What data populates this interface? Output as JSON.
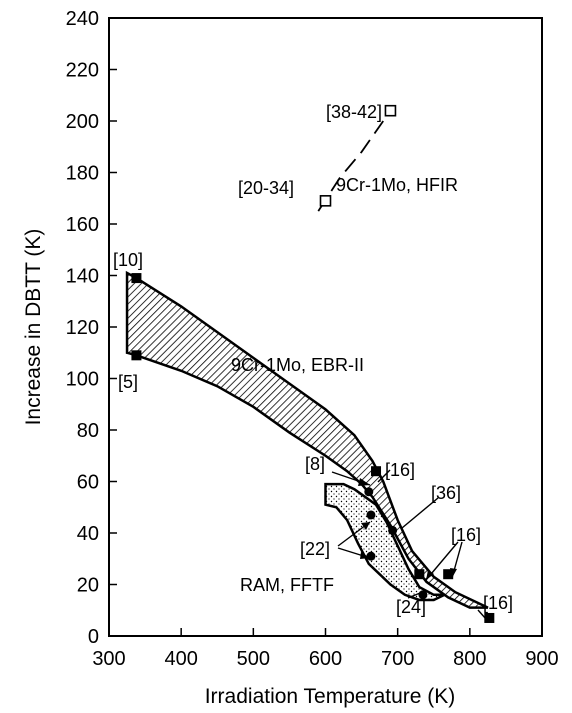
{
  "chart_data": {
    "type": "scatter",
    "xlabel": "Irradiation Temperature (K)",
    "ylabel": "Increase in DBTT (K)",
    "xlim": [
      300,
      900
    ],
    "ylim": [
      0,
      240
    ],
    "x_ticks": [
      300,
      400,
      500,
      600,
      700,
      800,
      900
    ],
    "y_ticks": [
      0,
      20,
      40,
      60,
      80,
      100,
      120,
      140,
      160,
      180,
      200,
      220,
      240
    ],
    "grid": false,
    "legend": "none",
    "series": [
      {
        "name": "9Cr-1Mo, HFIR",
        "marker": "open-square",
        "points": [
          {
            "x": 600,
            "y": 169,
            "label": "[20-34]"
          },
          {
            "x": 690,
            "y": 204,
            "label": "[38-42]"
          }
        ],
        "trend": [
          [
            590,
            165
          ],
          [
            620,
            178
          ],
          [
            650,
            188
          ],
          [
            680,
            200
          ]
        ]
      },
      {
        "name": "9Cr-1Mo, EBR-II",
        "marker": "filled-square",
        "points": [
          {
            "x": 338,
            "y": 139,
            "label": "[10]"
          },
          {
            "x": 338,
            "y": 109,
            "label": "[5]"
          },
          {
            "x": 670,
            "y": 64,
            "label": "[16]"
          },
          {
            "x": 730,
            "y": 24,
            "label": "[16]"
          },
          {
            "x": 770,
            "y": 24,
            "label": "[16]"
          },
          {
            "x": 827,
            "y": 7,
            "label": "[16]"
          }
        ],
        "band_upper": [
          [
            325,
            141
          ],
          [
            338,
            139
          ],
          [
            400,
            128
          ],
          [
            450,
            118
          ],
          [
            500,
            108
          ],
          [
            550,
            98
          ],
          [
            600,
            88
          ],
          [
            640,
            78
          ],
          [
            665,
            68
          ],
          [
            680,
            60
          ],
          [
            700,
            45
          ],
          [
            720,
            33
          ],
          [
            750,
            23
          ],
          [
            780,
            17
          ],
          [
            810,
            13
          ],
          [
            825,
            11
          ]
        ],
        "band_lower": [
          [
            325,
            110
          ],
          [
            338,
            109
          ],
          [
            400,
            103
          ],
          [
            450,
            97
          ],
          [
            500,
            89
          ],
          [
            550,
            79
          ],
          [
            600,
            70
          ],
          [
            630,
            64
          ],
          [
            650,
            59
          ],
          [
            665,
            54
          ],
          [
            690,
            43
          ],
          [
            715,
            30
          ],
          [
            740,
            21
          ],
          [
            770,
            15
          ],
          [
            800,
            11
          ],
          [
            825,
            11
          ]
        ]
      },
      {
        "name": "RAM, FFTF",
        "marker": "filled-circle",
        "points": [
          {
            "x": 663,
            "y": 47,
            "label": "[22]"
          },
          {
            "x": 663,
            "y": 31,
            "label": "[22]"
          },
          {
            "x": 660,
            "y": 56,
            "label": "[8]"
          },
          {
            "x": 693,
            "y": 41,
            "label": "[36]"
          },
          {
            "x": 735,
            "y": 16,
            "label": "[24]"
          }
        ],
        "band_upper": [
          [
            600,
            59
          ],
          [
            625,
            59
          ],
          [
            640,
            57
          ],
          [
            655,
            54
          ],
          [
            670,
            51
          ],
          [
            685,
            44
          ],
          [
            700,
            35
          ],
          [
            715,
            26
          ],
          [
            730,
            19
          ],
          [
            750,
            16
          ],
          [
            765,
            16
          ]
        ],
        "band_lower": [
          [
            600,
            51
          ],
          [
            615,
            50
          ],
          [
            630,
            45
          ],
          [
            645,
            36
          ],
          [
            660,
            28
          ],
          [
            675,
            24
          ],
          [
            690,
            20
          ],
          [
            710,
            16
          ],
          [
            730,
            14
          ],
          [
            750,
            14
          ],
          [
            765,
            16
          ]
        ]
      }
    ],
    "annotations": {
      "hfir_label": "9Cr-1Mo, HFIR",
      "ebr_label": "9Cr-1Mo, EBR-II",
      "ram_label": "RAM, FFTF",
      "ref_10": "[10]",
      "ref_5": "[5]",
      "ref_20_34": "[20-34]",
      "ref_38_42": "[38-42]",
      "ref_8": "[8]",
      "ref_16_a": "[16]",
      "ref_36": "[36]",
      "ref_16_b": "[16]",
      "ref_22": "[22]",
      "ref_24": "[24]",
      "ref_16_c": "[16]"
    }
  }
}
